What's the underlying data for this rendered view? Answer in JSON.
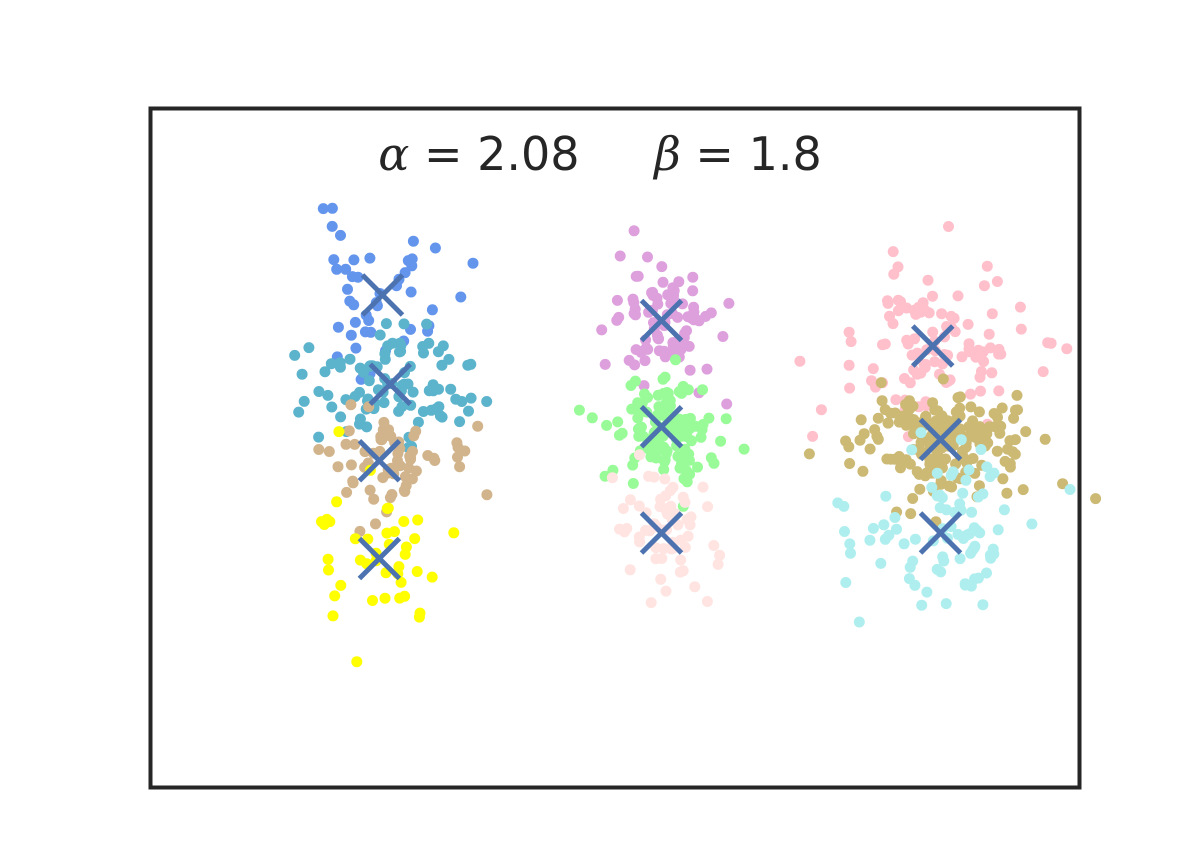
{
  "chart_data": {
    "type": "scatter",
    "title": {
      "alpha_symbol": "α",
      "alpha_value": "= 2.08",
      "beta_symbol": "β",
      "beta_value": "= 1.8"
    },
    "xlabel": "",
    "ylabel": "",
    "axes_visible": false,
    "grid": false,
    "legend": "none",
    "xlim": [
      -1.5,
      4.5
    ],
    "ylim": [
      -1.0,
      7.0
    ],
    "marker_color": "#4c72b0",
    "series": [
      {
        "color": "#6495ed",
        "center": [
          0.0,
          4.8
        ],
        "spread": [
          0.25,
          0.45
        ],
        "n": 45,
        "seed": 11
      },
      {
        "color": "#5cb3cc",
        "center": [
          0.05,
          3.75
        ],
        "spread": [
          0.27,
          0.3
        ],
        "n": 95,
        "seed": 12
      },
      {
        "color": "#d2b48c",
        "center": [
          -0.02,
          2.85
        ],
        "spread": [
          0.27,
          0.3
        ],
        "n": 65,
        "seed": 13
      },
      {
        "color": "#ffff00",
        "center": [
          -0.02,
          1.7
        ],
        "spread": [
          0.22,
          0.45
        ],
        "n": 42,
        "seed": 14
      },
      {
        "color": "#dda0dd",
        "center": [
          1.8,
          4.5
        ],
        "spread": [
          0.17,
          0.4
        ],
        "n": 85,
        "seed": 21
      },
      {
        "color": "#98fb98",
        "center": [
          1.8,
          3.25
        ],
        "spread": [
          0.17,
          0.28
        ],
        "n": 115,
        "seed": 22
      },
      {
        "color": "#ffe4e1",
        "center": [
          1.8,
          2.0
        ],
        "spread": [
          0.17,
          0.45
        ],
        "n": 60,
        "seed": 23
      },
      {
        "color": "#ffc0cb",
        "center": [
          3.55,
          4.2
        ],
        "spread": [
          0.3,
          0.45
        ],
        "n": 110,
        "seed": 31
      },
      {
        "color": "#ccb974",
        "center": [
          3.6,
          3.1
        ],
        "spread": [
          0.27,
          0.3
        ],
        "n": 195,
        "seed": 32
      },
      {
        "color": "#afeeee",
        "center": [
          3.6,
          2.0
        ],
        "spread": [
          0.3,
          0.45
        ],
        "n": 85,
        "seed": 33
      }
    ],
    "centroids": {
      "x": [
        0.0,
        0.05,
        -0.02,
        -0.02,
        1.8,
        1.8,
        1.8,
        3.55,
        3.6,
        3.6
      ],
      "y": [
        4.8,
        3.75,
        2.85,
        1.7,
        4.5,
        3.25,
        2.0,
        4.2,
        3.1,
        2.0
      ]
    }
  }
}
